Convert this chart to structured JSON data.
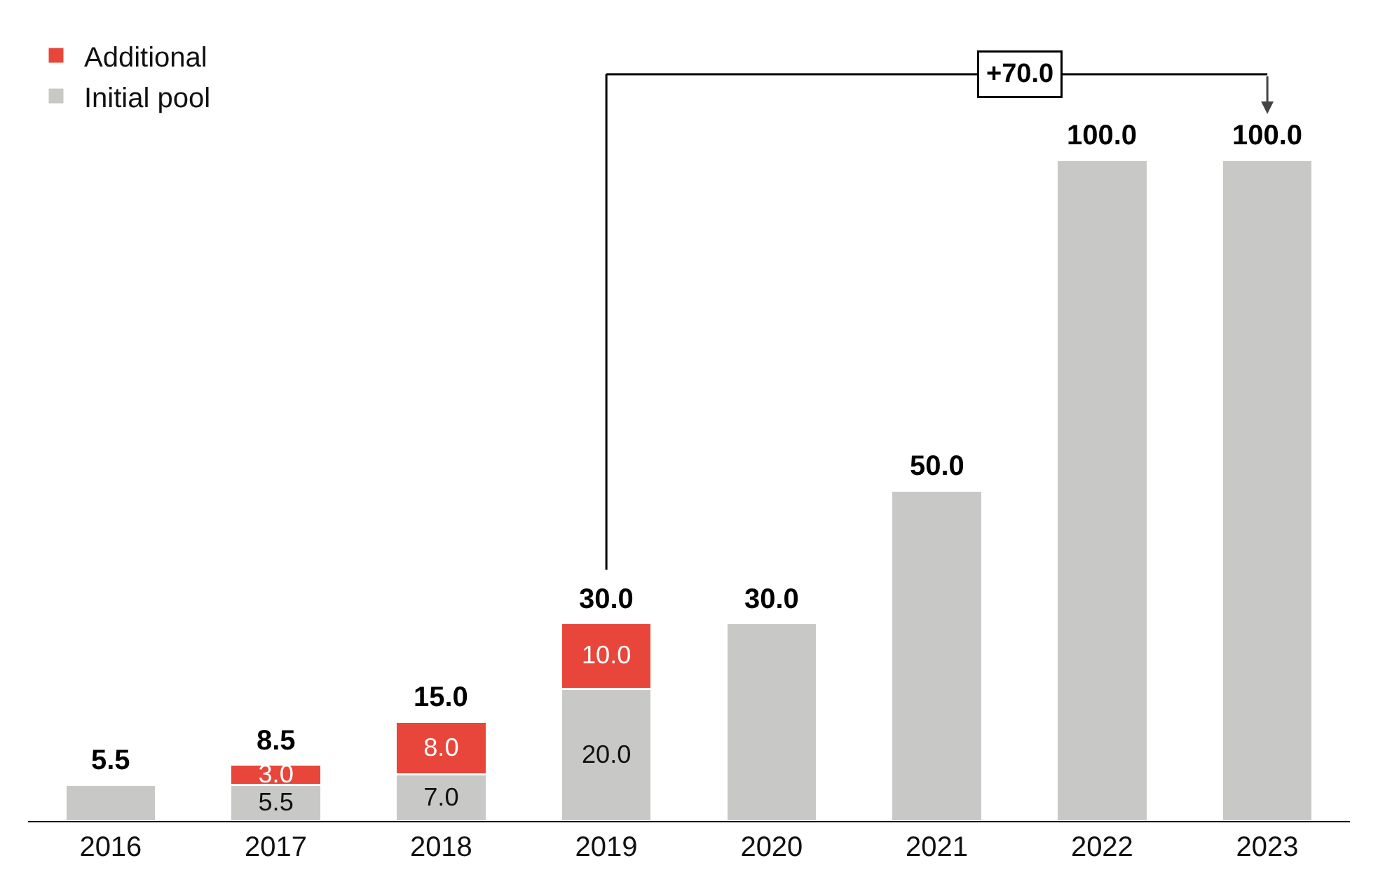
{
  "chart_data": {
    "type": "bar",
    "stacked": true,
    "categories": [
      "2016",
      "2017",
      "2018",
      "2019",
      "2020",
      "2021",
      "2022",
      "2023"
    ],
    "series": [
      {
        "name": "Initial pool",
        "color": "#c8c8c7",
        "values": [
          5.5,
          5.5,
          7.0,
          20.0,
          30.0,
          50.0,
          100.0,
          100.0
        ],
        "value_labels": [
          null,
          "5.5",
          "7.0",
          "20.0",
          null,
          null,
          null,
          null
        ]
      },
      {
        "name": "Additional",
        "color": "#e8463a",
        "values": [
          null,
          3.0,
          8.0,
          10.0,
          null,
          null,
          null,
          null
        ],
        "value_labels": [
          null,
          "3.0",
          "8.0",
          "10.0",
          null,
          null,
          null,
          null
        ]
      }
    ],
    "totals": [
      "5.5",
      "8.5",
      "15.0",
      "30.0",
      "30.0",
      "50.0",
      "100.0",
      "100.0"
    ],
    "annotations": [
      "+70.0"
    ],
    "legend": "top left"
  }
}
